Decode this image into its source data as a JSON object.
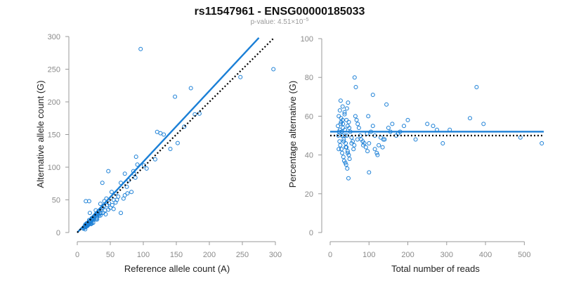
{
  "title": "rs11547961 - ENSG00000185033",
  "subtitle_prefix": "p-value: 4.51×10",
  "subtitle_exponent": "−5",
  "colors": {
    "points": "#1a7fd6",
    "fit_line": "#1a7fd6",
    "reference_line": "#000000",
    "axes": "#9a9a9a"
  },
  "chart_data": [
    {
      "type": "scatter",
      "xlabel": "Reference allele count (A)",
      "ylabel": "Alternative allele count (G)",
      "xlim": [
        0,
        300
      ],
      "ylim": [
        0,
        300
      ],
      "xticks": [
        0,
        50,
        100,
        150,
        200,
        250,
        300
      ],
      "yticks": [
        0,
        50,
        100,
        150,
        200,
        250,
        300
      ],
      "grid": false,
      "lines": [
        {
          "style": "solid",
          "x": [
            0,
            275
          ],
          "y": [
            0,
            298
          ]
        },
        {
          "style": "dotted",
          "x": [
            0,
            297
          ],
          "y": [
            0,
            297
          ]
        }
      ],
      "x": [
        96,
        297,
        172,
        148,
        247,
        185,
        178,
        162,
        121,
        126,
        131,
        118,
        152,
        141,
        89,
        72,
        91,
        105,
        85,
        101,
        86,
        66,
        78,
        88,
        75,
        82,
        72,
        70,
        76,
        47,
        38,
        52,
        58,
        62,
        44,
        55,
        48,
        41,
        45,
        35,
        40,
        50,
        55,
        53,
        58,
        60,
        35,
        38,
        42,
        30,
        32,
        28,
        33,
        36,
        25,
        27,
        30,
        22,
        20,
        24,
        18,
        26,
        29,
        31,
        34,
        15,
        18,
        20,
        22,
        12,
        14,
        16,
        19,
        23,
        15,
        17,
        21,
        24,
        13,
        16,
        18,
        20,
        12,
        14,
        10,
        11,
        13,
        15,
        17,
        9,
        11,
        14,
        16,
        18,
        13,
        19,
        24,
        28,
        39,
        43,
        66,
        47,
        12,
        20,
        25,
        30,
        35,
        15,
        22,
        28
      ],
      "y": [
        281,
        250,
        221,
        208,
        238,
        182,
        181,
        162,
        154,
        152,
        150,
        112,
        137,
        128,
        116,
        90,
        104,
        98,
        94,
        103,
        90,
        76,
        80,
        84,
        70,
        62,
        57,
        52,
        60,
        94,
        76,
        62,
        60,
        55,
        52,
        50,
        45,
        48,
        42,
        44,
        40,
        38,
        36,
        42,
        46,
        50,
        35,
        38,
        34,
        30,
        32,
        28,
        26,
        30,
        24,
        26,
        20,
        22,
        18,
        21,
        19,
        23,
        25,
        27,
        29,
        14,
        16,
        18,
        20,
        12,
        14,
        15,
        17,
        19,
        10,
        12,
        13,
        15,
        9,
        11,
        13,
        14,
        8,
        10,
        7,
        9,
        10,
        12,
        14,
        6,
        8,
        10,
        12,
        48,
        48,
        30,
        22,
        34,
        30,
        28,
        30,
        35,
        5,
        16,
        20,
        22,
        26,
        10,
        14,
        20
      ]
    },
    {
      "type": "scatter",
      "xlabel": "Total number of reads",
      "ylabel": "Percentage alternative (G)",
      "xlim": [
        0,
        550
      ],
      "ylim": [
        0,
        100
      ],
      "xticks": [
        0,
        100,
        200,
        300,
        400,
        500
      ],
      "yticks": [
        0,
        20,
        40,
        60,
        80,
        100
      ],
      "grid": false,
      "lines": [
        {
          "style": "solid",
          "x": [
            0,
            550
          ],
          "y": [
            52,
            52
          ]
        },
        {
          "style": "dotted",
          "x": [
            0,
            550
          ],
          "y": [
            50,
            50
          ]
        }
      ],
      "x": [
        63,
        377,
        66,
        110,
        98,
        145,
        20,
        22,
        25,
        28,
        30,
        33,
        35,
        38,
        40,
        42,
        45,
        48,
        50,
        24,
        26,
        29,
        31,
        34,
        36,
        39,
        41,
        44,
        47,
        21,
        23,
        27,
        32,
        37,
        43,
        46,
        49,
        52,
        55,
        58,
        62,
        65,
        68,
        71,
        74,
        77,
        80,
        84,
        88,
        92,
        96,
        100,
        105,
        110,
        115,
        120,
        125,
        130,
        135,
        140,
        150,
        160,
        170,
        180,
        190,
        200,
        220,
        250,
        265,
        275,
        290,
        308,
        360,
        395,
        490,
        545,
        25,
        30,
        35,
        40,
        45,
        28,
        33,
        38,
        43,
        48,
        55,
        60,
        70,
        85,
        95,
        45,
        42,
        37,
        32,
        27,
        22,
        100,
        115,
        122,
        137,
        155,
        175
      ],
      "y": [
        80,
        75,
        75,
        71,
        60,
        66,
        55,
        60,
        63,
        57,
        52,
        54,
        48,
        50,
        46,
        44,
        42,
        40,
        38,
        47,
        45,
        43,
        41,
        39,
        37,
        36,
        35,
        33,
        28,
        50,
        52,
        56,
        58,
        61,
        64,
        67,
        54,
        52,
        49,
        47,
        45,
        60,
        58,
        56,
        54,
        50,
        48,
        47,
        46,
        44,
        42,
        31,
        52,
        55,
        43,
        41,
        45,
        49,
        44,
        48,
        54,
        56,
        50,
        52,
        55,
        58,
        48,
        56,
        55,
        53,
        46,
        53,
        59,
        56,
        49,
        46,
        53,
        50,
        47,
        44,
        41,
        59,
        56,
        53,
        50,
        57,
        46,
        43,
        48,
        45,
        51,
        55,
        58,
        62,
        65,
        68,
        43,
        46,
        50,
        40,
        48,
        52,
        51
      ]
    }
  ]
}
